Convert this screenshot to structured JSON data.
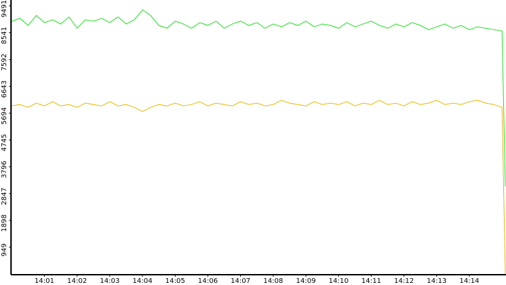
{
  "chart_data": {
    "type": "line",
    "x": [
      0,
      0.25,
      0.5,
      0.75,
      1,
      1.25,
      1.5,
      1.75,
      2,
      2.25,
      2.5,
      2.75,
      3,
      3.25,
      3.5,
      3.75,
      4,
      4.25,
      4.5,
      4.75,
      5,
      5.25,
      5.5,
      5.75,
      6,
      6.25,
      6.5,
      6.75,
      7,
      7.25,
      7.5,
      7.75,
      8,
      8.25,
      8.5,
      8.75,
      9,
      9.25,
      9.5,
      9.75,
      10,
      10.25,
      10.5,
      10.75,
      11,
      11.25,
      11.5,
      11.75,
      12,
      12.25,
      12.5,
      12.75,
      13,
      13.25,
      13.5,
      13.75,
      14,
      14.25,
      14.5,
      14.75,
      15,
      15.1
    ],
    "series": [
      {
        "color": "#22dd22",
        "values": [
          8950,
          9050,
          8800,
          9150,
          8900,
          9000,
          8850,
          9100,
          8700,
          9000,
          8950,
          9050,
          8900,
          9100,
          8850,
          9000,
          9350,
          9150,
          8800,
          8700,
          8950,
          8850,
          8700,
          8900,
          8800,
          8950,
          8700,
          8850,
          8950,
          8800,
          8900,
          8700,
          8850,
          8750,
          8900,
          8800,
          8950,
          8750,
          8850,
          8800,
          8700,
          8900,
          8750,
          8850,
          8950,
          8800,
          8700,
          8850,
          8750,
          8900,
          8800,
          8650,
          8750,
          8850,
          8700,
          8800,
          8650,
          8750,
          8700,
          8650,
          8600,
          3100
        ]
      },
      {
        "color": "#e6b800",
        "values": [
          5950,
          6000,
          5900,
          6050,
          5950,
          6100,
          5950,
          6000,
          5900,
          6050,
          6000,
          5950,
          6100,
          5950,
          6000,
          5900,
          5750,
          5900,
          6000,
          5950,
          6050,
          5950,
          6000,
          6100,
          5950,
          6050,
          6000,
          5950,
          6100,
          6000,
          6050,
          5950,
          6000,
          6150,
          6050,
          6000,
          5950,
          6100,
          6000,
          6050,
          6000,
          6100,
          5950,
          6050,
          6000,
          6150,
          6000,
          6050,
          5950,
          6100,
          6000,
          6050,
          6150,
          6000,
          6050,
          6000,
          6100,
          6150,
          6050,
          6000,
          5900,
          0
        ]
      }
    ],
    "xlim": [
      0,
      15.1
    ],
    "xticks": [
      {
        "value": 1,
        "label": "14:01"
      },
      {
        "value": 2,
        "label": "14:02"
      },
      {
        "value": 3,
        "label": "14:03"
      },
      {
        "value": 4,
        "label": "14:04"
      },
      {
        "value": 5,
        "label": "14:05"
      },
      {
        "value": 6,
        "label": "14:06"
      },
      {
        "value": 7,
        "label": "14:07"
      },
      {
        "value": 8,
        "label": "14:08"
      },
      {
        "value": 9,
        "label": "14:09"
      },
      {
        "value": 10,
        "label": "14:10"
      },
      {
        "value": 11,
        "label": "14:11"
      },
      {
        "value": 12,
        "label": "14:12"
      },
      {
        "value": 13,
        "label": "14:13"
      },
      {
        "value": 14,
        "label": "14:14"
      }
    ],
    "ylim": [
      0,
      9700
    ],
    "yticks": [
      949,
      1898,
      2847,
      3796,
      4745,
      5694,
      6643,
      7592,
      8541,
      9491
    ]
  }
}
